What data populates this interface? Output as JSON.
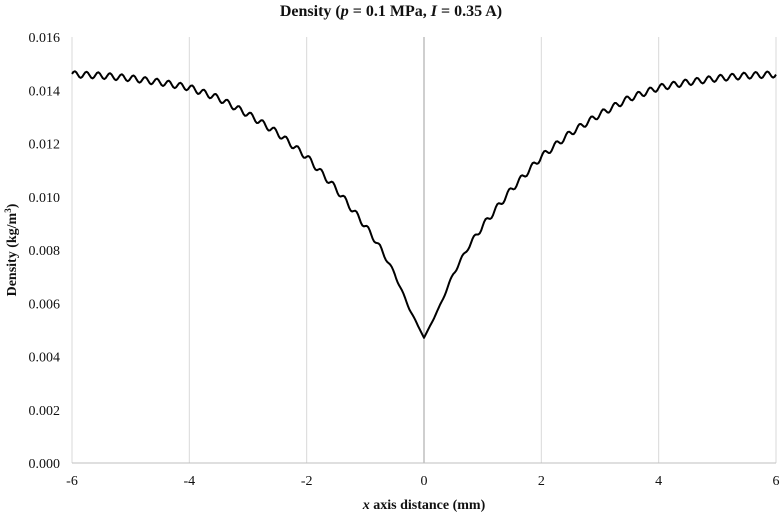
{
  "chart_data": {
    "type": "line",
    "title": {
      "pre": "Density (",
      "p_var": "p",
      "p_val": " = 0.1 MPa, ",
      "i_var": "I",
      "i_val": " = 0.35 A)"
    },
    "xlabel": {
      "var": "x",
      "rest": " axis distance (mm)"
    },
    "ylabel": {
      "pre": "Density (kg/m",
      "sup": "3",
      "post": ")"
    },
    "xlim": [
      -6,
      6
    ],
    "ylim": [
      0,
      0.016
    ],
    "x_ticks": [
      "-6",
      "-4",
      "-2",
      "0",
      "2",
      "4",
      "6"
    ],
    "y_ticks": [
      "0.000",
      "0.002",
      "0.004",
      "0.006",
      "0.008",
      "0.010",
      "0.012",
      "0.014",
      "0.016"
    ],
    "grid": "vertical",
    "series": [
      {
        "x": [
          -6,
          -5.5,
          -5,
          -4.5,
          -4,
          -3.5,
          -3,
          -2.5,
          -2,
          -1.5,
          -1,
          -0.75,
          -0.5,
          -0.25,
          0,
          0.25,
          0.5,
          0.75,
          1,
          1.5,
          2,
          2.5,
          3,
          3.5,
          4,
          4.5,
          5,
          5.5,
          6
        ],
        "y": [
          0.0146,
          0.01455,
          0.01445,
          0.0143,
          0.0141,
          0.0137,
          0.0131,
          0.0124,
          0.0115,
          0.0103,
          0.0089,
          0.0081,
          0.0071,
          0.0058,
          0.0047,
          0.0058,
          0.0071,
          0.0081,
          0.0089,
          0.0103,
          0.0115,
          0.0124,
          0.0131,
          0.0137,
          0.0141,
          0.0143,
          0.01445,
          0.01455,
          0.0146
        ]
      }
    ]
  }
}
